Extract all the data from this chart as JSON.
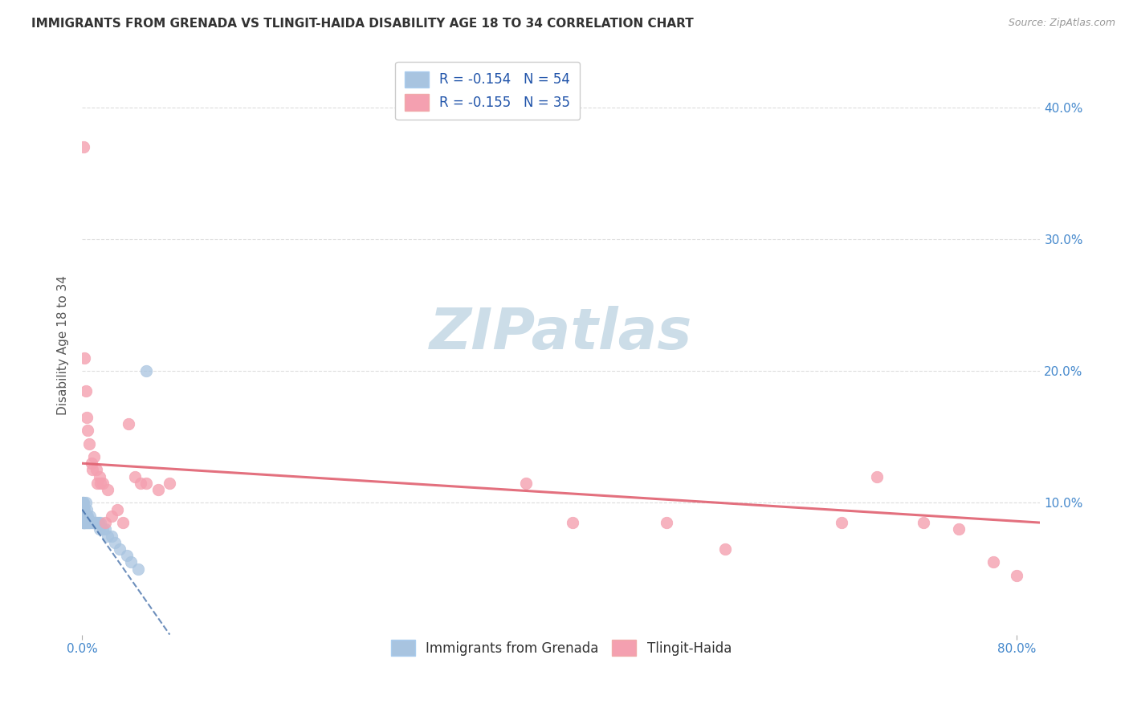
{
  "title": "IMMIGRANTS FROM GRENADA VS TLINGIT-HAIDA DISABILITY AGE 18 TO 34 CORRELATION CHART",
  "source": "Source: ZipAtlas.com",
  "ylabel": "Disability Age 18 to 34",
  "legend_blue_r": "R = -0.154",
  "legend_blue_n": "N = 54",
  "legend_pink_r": "R = -0.155",
  "legend_pink_n": "N = 35",
  "legend_blue_label": "Immigrants from Grenada",
  "legend_pink_label": "Tlingit-Haida",
  "blue_color": "#a8c4e0",
  "blue_edge_color": "#7aaad0",
  "pink_color": "#f4a0b0",
  "pink_edge_color": "#e07080",
  "blue_line_color": "#3060a0",
  "pink_line_color": "#e06070",
  "background_color": "#ffffff",
  "grid_color": "#dddddd",
  "watermark_color": "#ccdde8",
  "blue_points_x": [
    0.0005,
    0.0005,
    0.0005,
    0.0005,
    0.0008,
    0.001,
    0.001,
    0.001,
    0.001,
    0.001,
    0.001,
    0.0015,
    0.0015,
    0.002,
    0.002,
    0.002,
    0.002,
    0.002,
    0.0025,
    0.0025,
    0.003,
    0.003,
    0.003,
    0.003,
    0.004,
    0.004,
    0.004,
    0.005,
    0.005,
    0.005,
    0.006,
    0.006,
    0.007,
    0.007,
    0.008,
    0.009,
    0.01,
    0.01,
    0.011,
    0.012,
    0.013,
    0.014,
    0.015,
    0.016,
    0.018,
    0.02,
    0.022,
    0.025,
    0.028,
    0.032,
    0.038,
    0.042,
    0.048,
    0.055
  ],
  "blue_points_y": [
    0.1,
    0.095,
    0.09,
    0.085,
    0.1,
    0.1,
    0.095,
    0.09,
    0.09,
    0.085,
    0.085,
    0.09,
    0.085,
    0.095,
    0.09,
    0.09,
    0.085,
    0.085,
    0.09,
    0.085,
    0.1,
    0.09,
    0.09,
    0.085,
    0.095,
    0.09,
    0.085,
    0.09,
    0.085,
    0.085,
    0.085,
    0.085,
    0.085,
    0.09,
    0.085,
    0.085,
    0.085,
    0.085,
    0.085,
    0.085,
    0.085,
    0.085,
    0.08,
    0.085,
    0.08,
    0.08,
    0.075,
    0.075,
    0.07,
    0.065,
    0.06,
    0.055,
    0.05,
    0.2
  ],
  "pink_points_x": [
    0.001,
    0.002,
    0.003,
    0.004,
    0.005,
    0.006,
    0.008,
    0.009,
    0.01,
    0.012,
    0.013,
    0.015,
    0.016,
    0.018,
    0.02,
    0.022,
    0.025,
    0.03,
    0.035,
    0.04,
    0.045,
    0.05,
    0.055,
    0.065,
    0.075,
    0.38,
    0.42,
    0.5,
    0.55,
    0.65,
    0.68,
    0.72,
    0.75,
    0.78,
    0.8
  ],
  "pink_points_y": [
    0.37,
    0.21,
    0.185,
    0.165,
    0.155,
    0.145,
    0.13,
    0.125,
    0.135,
    0.125,
    0.115,
    0.12,
    0.115,
    0.115,
    0.085,
    0.11,
    0.09,
    0.095,
    0.085,
    0.16,
    0.12,
    0.115,
    0.115,
    0.11,
    0.115,
    0.115,
    0.085,
    0.085,
    0.065,
    0.085,
    0.12,
    0.085,
    0.08,
    0.055,
    0.045
  ],
  "pink_line_start_x": 0.0,
  "pink_line_start_y": 0.13,
  "pink_line_end_x": 0.82,
  "pink_line_end_y": 0.085,
  "blue_line_start_x": 0.0,
  "blue_line_start_y": 0.095,
  "blue_line_end_x": 0.075,
  "blue_line_end_y": 0.0,
  "xlim": [
    0.0,
    0.82
  ],
  "ylim": [
    0.0,
    0.44
  ],
  "xtick_left_label": "0.0%",
  "xtick_right_label": "80.0%",
  "xtick_left_val": 0.0,
  "xtick_right_val": 0.8,
  "ytick_right_vals": [
    0.1,
    0.2,
    0.3,
    0.4
  ],
  "ytick_right_labels": [
    "10.0%",
    "20.0%",
    "30.0%",
    "40.0%"
  ],
  "ytick_grid_vals": [
    0.1,
    0.2,
    0.3,
    0.4
  ],
  "title_fontsize": 11,
  "source_fontsize": 9,
  "ylabel_fontsize": 11,
  "tick_fontsize": 11,
  "legend_fontsize": 12,
  "watermark_fontsize": 52,
  "scatter_size": 110
}
